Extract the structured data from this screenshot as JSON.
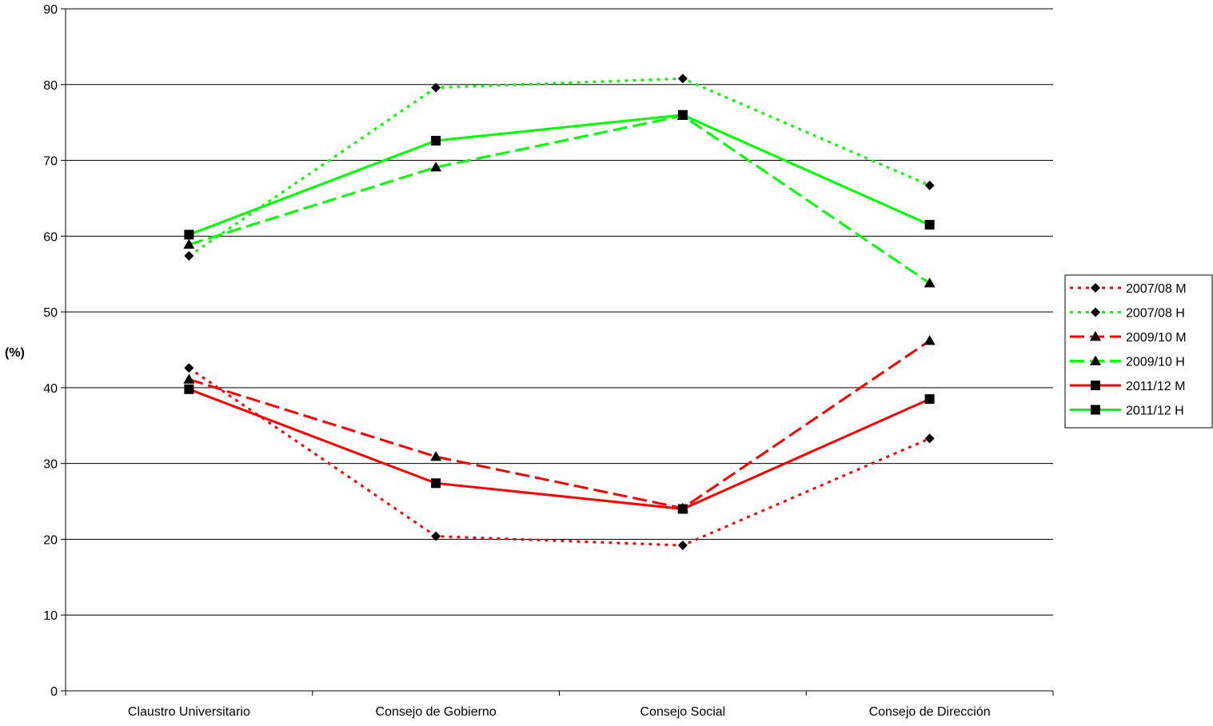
{
  "chart_data": {
    "type": "line",
    "title": "",
    "xlabel": "",
    "ylabel": "(%)",
    "ylim": [
      0,
      90
    ],
    "yticks": [
      0,
      10,
      20,
      30,
      40,
      50,
      60,
      70,
      80,
      90
    ],
    "grid": "horizontal",
    "legend_position": "right",
    "categories": [
      "Claustro Universitario",
      "Consejo de Gobierno",
      "Consejo Social",
      "Consejo de Dirección"
    ],
    "series": [
      {
        "name": "2007/08 M",
        "values": [
          42.6,
          20.4,
          19.2,
          33.3
        ],
        "color": "#ff0000",
        "dash": "dotted",
        "marker": "diamond"
      },
      {
        "name": "2007/08 H",
        "values": [
          57.4,
          79.6,
          80.8,
          66.7
        ],
        "color": "#00ff00",
        "dash": "dotted",
        "marker": "diamond"
      },
      {
        "name": "2009/10 M",
        "values": [
          41.1,
          30.9,
          24.1,
          46.2
        ],
        "color": "#ff0000",
        "dash": "dashed",
        "marker": "triangle"
      },
      {
        "name": "2009/10 H",
        "values": [
          58.9,
          69.1,
          75.9,
          53.8
        ],
        "color": "#00ff00",
        "dash": "dashed",
        "marker": "triangle"
      },
      {
        "name": "2011/12 M",
        "values": [
          39.8,
          27.4,
          24.0,
          38.5
        ],
        "color": "#ff0000",
        "dash": "solid",
        "marker": "square"
      },
      {
        "name": "2011/12 H",
        "values": [
          60.2,
          72.6,
          76.0,
          61.5
        ],
        "color": "#00ff00",
        "dash": "solid",
        "marker": "square"
      }
    ]
  }
}
